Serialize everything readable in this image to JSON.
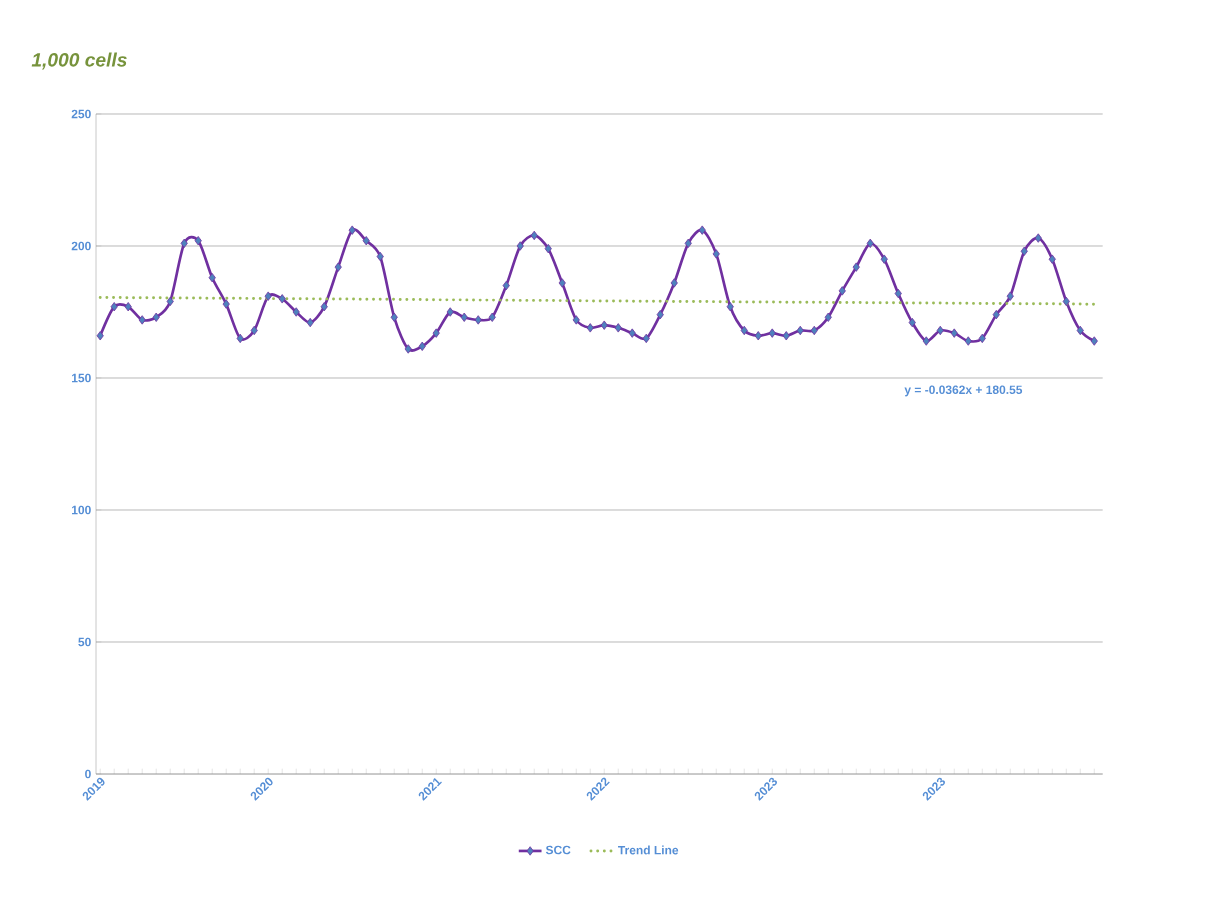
{
  "chart_data": {
    "type": "line",
    "ylabel": "1,000 cells",
    "categories": [
      "2019",
      null,
      null,
      null,
      null,
      null,
      null,
      null,
      null,
      null,
      null,
      null,
      "2020",
      null,
      null,
      null,
      null,
      null,
      null,
      null,
      null,
      null,
      null,
      null,
      "2021",
      null,
      null,
      null,
      null,
      null,
      null,
      null,
      null,
      null,
      null,
      null,
      "2022",
      null,
      null,
      null,
      null,
      null,
      null,
      null,
      null,
      null,
      null,
      null,
      "2023",
      null,
      null,
      null,
      null,
      null,
      null,
      null,
      null,
      null,
      null,
      null,
      "2023",
      null,
      null,
      null,
      null,
      null,
      null,
      null,
      null,
      null,
      null,
      null
    ],
    "series": [
      {
        "name": "SCC",
        "color": "#7030a0",
        "marker": "diamond",
        "line_style": "solid",
        "values": [
          166,
          177,
          177,
          172,
          173,
          179,
          201,
          202,
          188,
          178,
          165,
          168,
          181,
          180,
          175,
          171,
          177,
          192,
          206,
          202,
          196,
          173,
          161,
          162,
          167,
          175,
          173,
          172,
          173,
          185,
          200,
          204,
          199,
          186,
          172,
          169,
          170,
          169,
          167,
          165,
          174,
          186,
          201,
          206,
          197,
          177,
          168,
          166,
          167,
          166,
          168,
          168,
          173,
          183,
          192,
          201,
          195,
          182,
          171,
          164,
          168,
          167,
          164,
          165,
          174,
          181,
          198,
          203,
          195,
          179,
          168,
          164
        ]
      },
      {
        "name": "Trend Line",
        "color": "#9bbb59",
        "marker": "none",
        "line_style": "dotted",
        "values": [
          180.5,
          180.5,
          180.4,
          180.4,
          180.4,
          180.3,
          180.3,
          180.3,
          180.2,
          180.2,
          180.2,
          180.1,
          180.1,
          180.0,
          180.0,
          180.0,
          179.9,
          179.9,
          179.9,
          179.8,
          179.8,
          179.8,
          179.7,
          179.7,
          179.6,
          179.6,
          179.6,
          179.5,
          179.5,
          179.5,
          179.4,
          179.4,
          179.4,
          179.3,
          179.3,
          179.2,
          179.2,
          179.2,
          179.1,
          179.1,
          179.1,
          179.0,
          179.0,
          179.0,
          178.9,
          178.9,
          178.8,
          178.8,
          178.8,
          178.7,
          178.7,
          178.7,
          178.6,
          178.6,
          178.6,
          178.5,
          178.5,
          178.5,
          178.4,
          178.4,
          178.4,
          178.3,
          178.3,
          178.2,
          178.2,
          178.2,
          178.1,
          178.1,
          178.1,
          178.0,
          178.0,
          177.9
        ]
      }
    ],
    "ylim": [
      0,
      250
    ],
    "yticks": [
      0,
      50,
      100,
      150,
      200,
      250
    ],
    "grid": "y",
    "legend": "bottom",
    "annotations": [
      "y = -0.0362x + 180.55"
    ]
  }
}
